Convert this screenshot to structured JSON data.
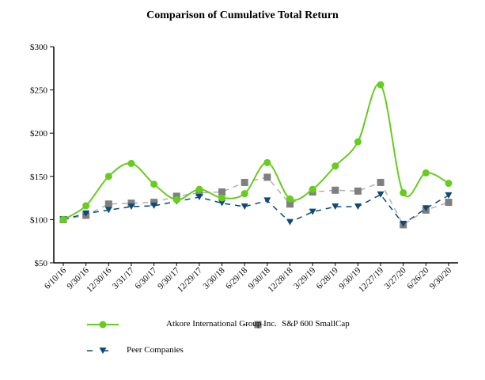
{
  "chart_data": {
    "type": "line",
    "title": "Comparison of Cumulative Total Return",
    "xlabel": "",
    "ylabel": "",
    "categories": [
      "6/10/16",
      "9/30/16",
      "12/30/16",
      "3/31/17",
      "6/30/17",
      "9/30/17",
      "12/29/17",
      "3/30/18",
      "6/29/18",
      "9/30/18",
      "12/28/18",
      "3/29/19",
      "6/28/19",
      "9/30/19",
      "12/27/19",
      "3/27/20",
      "6/26/20",
      "9/30/20"
    ],
    "ylim": [
      50,
      300
    ],
    "yticks": [
      50,
      100,
      150,
      200,
      250,
      300
    ],
    "ytick_labels": [
      "$50",
      "$100",
      "$150",
      "$200",
      "$250",
      "$300"
    ],
    "grid": false,
    "legend_position": "bottom",
    "series": [
      {
        "name": "Atkore International Group Inc.",
        "color": "#66cc1e",
        "marker": "circle",
        "line": "solid-smooth",
        "values": [
          100,
          116,
          150,
          165,
          141,
          123,
          135,
          125,
          130,
          166,
          124,
          135,
          162,
          190,
          256,
          131,
          154,
          142
        ]
      },
      {
        "name": "S&P 600 SmallCap",
        "color": "#7f7f7f",
        "marker": "square",
        "line": "dashed",
        "values": [
          100,
          105,
          118,
          119,
          120,
          127,
          131,
          132,
          143,
          149,
          118,
          132,
          134,
          133,
          143,
          94,
          111,
          120
        ]
      },
      {
        "name": "Peer Companies",
        "color": "#0e4a7a",
        "marker": "triangle-down",
        "line": "dashed",
        "values": [
          100,
          107,
          111,
          115,
          116,
          121,
          126,
          119,
          115,
          122,
          97,
          109,
          115,
          115,
          129,
          95,
          113,
          128
        ]
      }
    ]
  }
}
